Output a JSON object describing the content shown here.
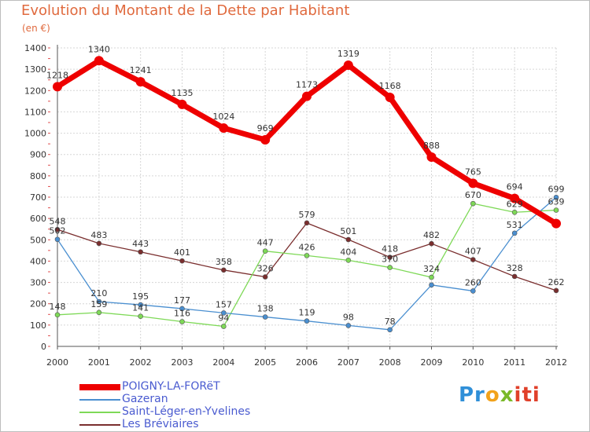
{
  "header": {
    "title": "Evolution du Montant de la Dette par Habitant",
    "subtitle": "(en €)"
  },
  "logo": {
    "text": "Proxiti",
    "letters": [
      "Pr",
      "o",
      "x",
      "iti"
    ]
  },
  "chart_data": {
    "type": "line",
    "title": "Evolution du Montant de la Dette par Habitant",
    "ylabel": "(en €)",
    "xlabel": "",
    "x": [
      "2000",
      "2001",
      "2002",
      "2003",
      "2004",
      "2005",
      "2006",
      "2007",
      "2008",
      "2009",
      "2010",
      "2011",
      "2012"
    ],
    "ylim": [
      0,
      1400
    ],
    "yticks": [
      0,
      100,
      200,
      300,
      400,
      500,
      600,
      700,
      800,
      900,
      1000,
      1100,
      1200,
      1300,
      1400
    ],
    "grid": true,
    "legend_position": "bottom-left",
    "series": [
      {
        "name": "POIGNY-LA-FORëT",
        "color": "#ee0000",
        "values": [
          1218,
          1340,
          1241,
          1135,
          1024,
          969,
          1173,
          1319,
          1168,
          888,
          765,
          694,
          576
        ],
        "labels": [
          "1218",
          "1340",
          "1241",
          "1135",
          "1024",
          "969",
          "1173",
          "1319",
          "1168",
          "888",
          "765",
          "694",
          ""
        ]
      },
      {
        "name": "Gazeran",
        "color": "#4a8fd0",
        "values": [
          502,
          210,
          195,
          177,
          157,
          138,
          119,
          98,
          78,
          288,
          260,
          531,
          699
        ],
        "labels": [
          "502",
          "210",
          "195",
          "177",
          "157",
          "138",
          "119",
          "98",
          "78",
          "",
          "260",
          "531",
          "699"
        ]
      },
      {
        "name": "Saint-Léger-en-Yvelines",
        "color": "#7ed957",
        "values": [
          148,
          159,
          141,
          116,
          94,
          447,
          426,
          404,
          370,
          324,
          670,
          629,
          639
        ],
        "labels": [
          "148",
          "159",
          "141",
          "116",
          "94",
          "447",
          "426",
          "404",
          "370",
          "324",
          "670",
          "629",
          "639"
        ]
      },
      {
        "name": "Les Bréviaires",
        "color": "#7a2e2e",
        "values": [
          548,
          483,
          443,
          401,
          358,
          326,
          579,
          501,
          418,
          482,
          407,
          328,
          262
        ],
        "labels": [
          "548",
          "483",
          "443",
          "401",
          "358",
          "326",
          "579",
          "501",
          "418",
          "482",
          "407",
          "328",
          "262"
        ]
      }
    ]
  }
}
